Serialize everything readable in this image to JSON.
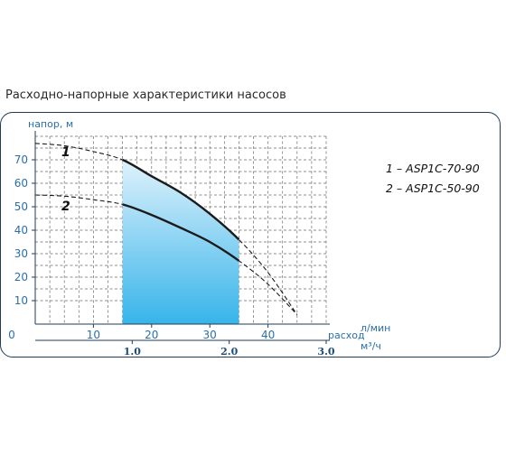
{
  "title": "Расходно-напорные характеристики насосов",
  "chart_data": {
    "type": "line",
    "ylabel": "напор, м",
    "xlabel_primary": "расход",
    "xunit_primary": "л/мин",
    "xunit_secondary": "м³/ч",
    "zero_label": "0",
    "y_ticks": [
      10,
      20,
      30,
      40,
      50,
      60,
      70
    ],
    "x_ticks_primary": [
      10,
      20,
      30,
      40
    ],
    "x_ticks_secondary": [
      "1.0",
      "2.0",
      "3.0"
    ],
    "ylim": [
      0,
      80
    ],
    "xlim": [
      0,
      50
    ],
    "grid": true,
    "colors": {
      "curve": "#1b1b1b",
      "fill_top": "#dff2fc",
      "fill_bottom": "#37b4ea",
      "axis": "#1f3b57",
      "secondary_tick": "#1a4d7a"
    },
    "working_range": [
      15,
      35
    ],
    "series": [
      {
        "name": "1 – ASP1C-70-90",
        "label": "1",
        "x": [
          0,
          5,
          10,
          15,
          20,
          25,
          30,
          35,
          40,
          45
        ],
        "y": [
          77,
          76,
          73.5,
          70,
          63,
          56,
          47,
          36,
          22,
          4
        ]
      },
      {
        "name": "2 – ASP1C-50-90",
        "label": "2",
        "x": [
          0,
          5,
          10,
          15,
          20,
          25,
          30,
          35,
          40,
          45
        ],
        "y": [
          55,
          54.5,
          53,
          51,
          46.5,
          41,
          35,
          27,
          17,
          4
        ]
      }
    ]
  }
}
